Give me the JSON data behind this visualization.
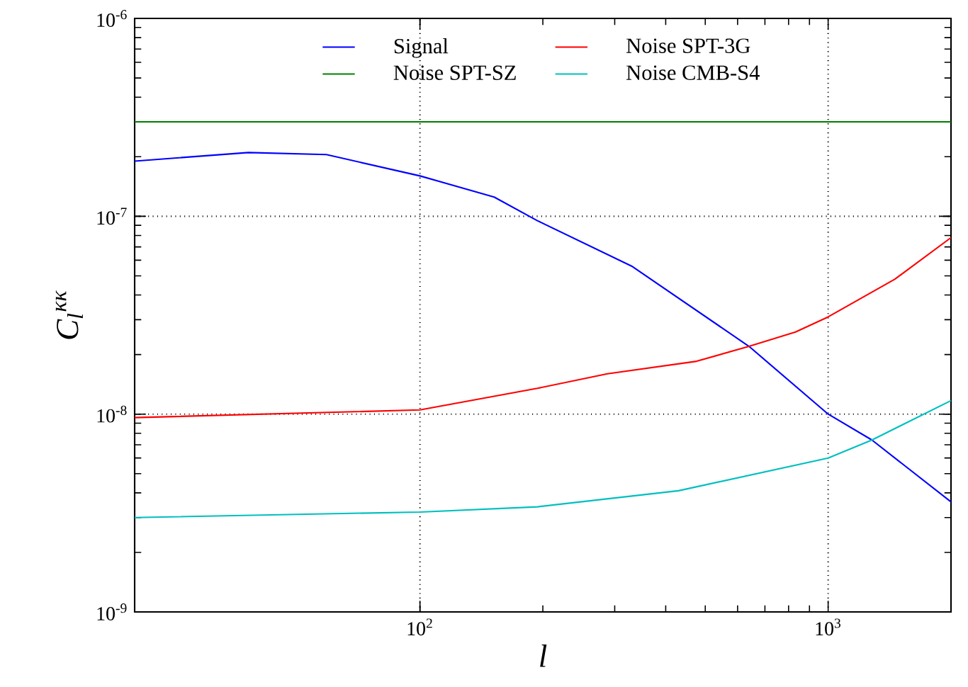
{
  "chart_data": {
    "type": "line",
    "xlabel": "l",
    "ylabel": "C$_{l}$$^{κκ}$",
    "log": "xy",
    "grid": true,
    "legend": "top",
    "line_style": "solid",
    "xlim": [
      20,
      2000
    ],
    "ylim": [
      1e-09,
      1e-06
    ],
    "xticks": [
      {
        "value": 100,
        "label": "10$^{2}$"
      },
      {
        "value": 1000,
        "label": "10$^{3}$"
      }
    ],
    "yticks": [
      {
        "value": 1e-09,
        "label": "10$^{-9}$"
      },
      {
        "value": 1e-08,
        "label": "10$^{-8}$"
      },
      {
        "value": 1e-07,
        "label": "10$^{-7}$"
      },
      {
        "value": 1e-06,
        "label": "10$^{-6}$"
      }
    ],
    "series": [
      {
        "name": "Signal",
        "color": "#0000ff",
        "x": [
          20,
          38,
          59,
          100,
          152,
          194,
          330,
          640,
          1000,
          1280,
          2000
        ],
        "values": [
          1.9e-07,
          2.1e-07,
          2.05e-07,
          1.6e-07,
          1.25e-07,
          9.5e-08,
          5.6e-08,
          2.2e-08,
          1e-08,
          7.4e-09,
          3.6e-09
        ]
      },
      {
        "name": "Noise SPT-SZ",
        "color": "#008000",
        "x": [
          20,
          2000
        ],
        "values": [
          3e-07,
          3e-07
        ]
      },
      {
        "name": "Noise SPT-3G",
        "color": "#ff0000",
        "x": [
          20,
          100,
          194,
          288,
          476,
          640,
          832,
          1000,
          1455,
          2000
        ],
        "values": [
          9.6e-09,
          1.05e-08,
          1.35e-08,
          1.6e-08,
          1.85e-08,
          2.2e-08,
          2.6e-08,
          3.1e-08,
          4.8e-08,
          7.8e-08
        ]
      },
      {
        "name": "Noise CMB-S4",
        "color": "#00bfbf",
        "x": [
          20,
          100,
          194,
          430,
          1000,
          1280,
          2000
        ],
        "values": [
          3e-09,
          3.2e-09,
          3.4e-09,
          4.1e-09,
          6e-09,
          7.4e-09,
          1.17e-08
        ]
      }
    ]
  }
}
